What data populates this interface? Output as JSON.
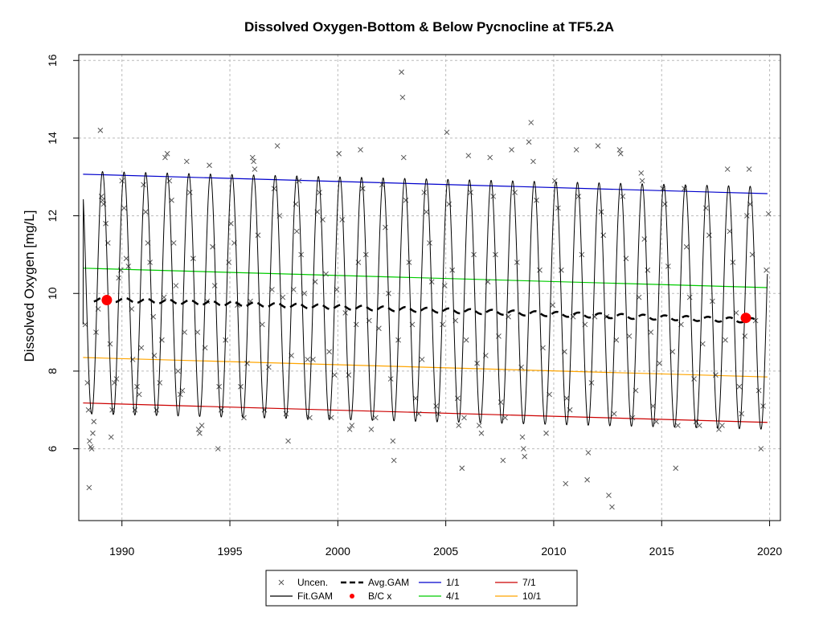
{
  "chart_data": {
    "type": "line",
    "title": "Dissolved Oxygen-Bottom & Below Pycnocline at TF5.2A",
    "xlabel": "",
    "ylabel": "Dissolved Oxygen [mg/L]",
    "xlim": [
      1988.0,
      2020.5
    ],
    "ylim": [
      4.15,
      16.15
    ],
    "x_ticks": [
      1990,
      1995,
      2000,
      2005,
      2010,
      2015,
      2020
    ],
    "y_ticks": [
      6,
      8,
      10,
      12,
      14,
      16
    ],
    "grid": true,
    "legend_position": "bottom",
    "colors": {
      "uncen": "#555555",
      "fit_gam": "#000000",
      "avg_gam": "#000000",
      "bc": "#ff0000",
      "p1_1": "#0000cc",
      "p4_1": "#00cc00",
      "p7_1": "#cc0000",
      "p10_1": "#ffa500",
      "grid": "#bbbbbb"
    },
    "legend": [
      {
        "key": "uncen",
        "label": "Uncen.",
        "symbol": "x"
      },
      {
        "key": "avg",
        "label": "Avg.GAM",
        "symbol": "dashed"
      },
      {
        "key": "p1",
        "label": "1/1",
        "symbol": "line"
      },
      {
        "key": "p7",
        "label": "7/1",
        "symbol": "line"
      },
      {
        "key": "fit",
        "label": "Fit.GAM",
        "symbol": "line"
      },
      {
        "key": "bc",
        "label": "B/C x",
        "symbol": "dot"
      },
      {
        "key": "p4",
        "label": "4/1",
        "symbol": "line"
      },
      {
        "key": "p10",
        "label": "10/1",
        "symbol": "line"
      }
    ],
    "series_lines": {
      "p1_1": {
        "x": [
          1988.2,
          2019.9
        ],
        "y": [
          13.07,
          12.57
        ]
      },
      "p4_1": {
        "x": [
          1988.2,
          2019.9
        ],
        "y": [
          10.65,
          10.15
        ]
      },
      "p10_1": {
        "x": [
          1988.2,
          2019.9
        ],
        "y": [
          8.35,
          7.85
        ]
      },
      "p7_1": {
        "x": [
          1988.2,
          2019.9
        ],
        "y": [
          7.18,
          6.68
        ]
      }
    },
    "avg_gam": {
      "x_start": 1988.7,
      "x_end": 2019.4,
      "y_start": 9.85,
      "y_end": 9.3,
      "wiggle": 0.06
    },
    "fit_gam": {
      "x_start": 1988.2,
      "x_end": 2019.9,
      "y_start": 9.2,
      "y_end": 10.5,
      "peak_start": 13.15,
      "peak_end": 12.75,
      "trough_start": 6.9,
      "trough_end": 6.5,
      "peak_phase": 0.1
    },
    "bc_points": [
      {
        "x": 1989.3,
        "y": 9.83
      },
      {
        "x": 2018.9,
        "y": 9.37
      }
    ],
    "uncensored_points": [
      [
        1988.3,
        9.2
      ],
      [
        1988.4,
        7.7
      ],
      [
        1988.45,
        7.0
      ],
      [
        1988.5,
        6.2
      ],
      [
        1988.55,
        6.05
      ],
      [
        1988.6,
        6.0
      ],
      [
        1988.48,
        5.0
      ],
      [
        1988.65,
        6.4
      ],
      [
        1988.7,
        6.7
      ],
      [
        1988.8,
        9.0
      ],
      [
        1988.9,
        9.6
      ],
      [
        1989.0,
        14.2
      ],
      [
        1989.05,
        12.5
      ],
      [
        1989.1,
        12.4
      ],
      [
        1989.15,
        12.3
      ],
      [
        1989.25,
        11.8
      ],
      [
        1989.35,
        11.3
      ],
      [
        1989.45,
        8.7
      ],
      [
        1989.5,
        6.3
      ],
      [
        1989.55,
        7.0
      ],
      [
        1989.65,
        7.7
      ],
      [
        1989.75,
        7.8
      ],
      [
        1989.85,
        10.4
      ],
      [
        1989.95,
        10.6
      ],
      [
        1990.0,
        12.9
      ],
      [
        1990.1,
        12.2
      ],
      [
        1990.2,
        10.9
      ],
      [
        1990.3,
        10.7
      ],
      [
        1990.45,
        9.6
      ],
      [
        1990.5,
        8.3
      ],
      [
        1990.6,
        7.0
      ],
      [
        1990.7,
        7.6
      ],
      [
        1990.8,
        7.4
      ],
      [
        1990.9,
        8.6
      ],
      [
        1991.0,
        12.8
      ],
      [
        1991.1,
        12.1
      ],
      [
        1991.2,
        11.3
      ],
      [
        1991.3,
        10.8
      ],
      [
        1991.45,
        9.4
      ],
      [
        1991.5,
        8.4
      ],
      [
        1991.6,
        7.0
      ],
      [
        1991.75,
        7.7
      ],
      [
        1991.85,
        8.8
      ],
      [
        1991.95,
        9.9
      ],
      [
        1992.0,
        13.5
      ],
      [
        1992.1,
        13.6
      ],
      [
        1992.2,
        12.9
      ],
      [
        1992.3,
        12.4
      ],
      [
        1992.4,
        11.3
      ],
      [
        1992.5,
        10.2
      ],
      [
        1992.6,
        8.0
      ],
      [
        1992.7,
        7.4
      ],
      [
        1992.8,
        7.5
      ],
      [
        1992.9,
        9.0
      ],
      [
        1993.0,
        13.4
      ],
      [
        1993.15,
        12.6
      ],
      [
        1993.3,
        10.9
      ],
      [
        1993.5,
        9.0
      ],
      [
        1993.55,
        6.5
      ],
      [
        1993.6,
        6.4
      ],
      [
        1993.7,
        6.6
      ],
      [
        1993.85,
        8.6
      ],
      [
        1993.95,
        9.8
      ],
      [
        1994.05,
        13.3
      ],
      [
        1994.2,
        11.2
      ],
      [
        1994.3,
        10.2
      ],
      [
        1994.45,
        6.0
      ],
      [
        1994.5,
        7.6
      ],
      [
        1994.6,
        7.0
      ],
      [
        1994.8,
        8.8
      ],
      [
        1994.95,
        10.8
      ],
      [
        1995.05,
        11.8
      ],
      [
        1995.2,
        11.3
      ],
      [
        1995.35,
        9.7
      ],
      [
        1995.5,
        7.6
      ],
      [
        1995.65,
        6.8
      ],
      [
        1995.8,
        8.2
      ],
      [
        1995.95,
        9.8
      ],
      [
        1996.05,
        13.5
      ],
      [
        1996.1,
        13.4
      ],
      [
        1996.15,
        13.2
      ],
      [
        1996.3,
        11.5
      ],
      [
        1996.5,
        9.2
      ],
      [
        1996.6,
        7.0
      ],
      [
        1996.8,
        8.1
      ],
      [
        1996.95,
        10.1
      ],
      [
        1997.05,
        12.7
      ],
      [
        1997.2,
        13.8
      ],
      [
        1997.3,
        12.0
      ],
      [
        1997.45,
        9.9
      ],
      [
        1997.6,
        6.9
      ],
      [
        1997.7,
        6.2
      ],
      [
        1997.85,
        8.4
      ],
      [
        1997.95,
        10.1
      ],
      [
        1998.05,
        12.3
      ],
      [
        1998.1,
        11.6
      ],
      [
        1998.2,
        12.9
      ],
      [
        1998.3,
        11.0
      ],
      [
        1998.45,
        10.0
      ],
      [
        1998.6,
        8.3
      ],
      [
        1998.7,
        6.8
      ],
      [
        1998.85,
        8.3
      ],
      [
        1998.95,
        10.3
      ],
      [
        1999.05,
        12.1
      ],
      [
        1999.15,
        12.6
      ],
      [
        1999.3,
        11.9
      ],
      [
        1999.45,
        10.5
      ],
      [
        1999.6,
        8.5
      ],
      [
        1999.7,
        6.8
      ],
      [
        1999.85,
        7.9
      ],
      [
        1999.95,
        10.1
      ],
      [
        2000.05,
        13.6
      ],
      [
        2000.2,
        11.9
      ],
      [
        2000.35,
        9.5
      ],
      [
        2000.5,
        7.9
      ],
      [
        2000.55,
        6.5
      ],
      [
        2000.65,
        6.6
      ],
      [
        2000.85,
        9.2
      ],
      [
        2000.95,
        10.8
      ],
      [
        2001.05,
        13.7
      ],
      [
        2001.15,
        12.7
      ],
      [
        2001.3,
        11.0
      ],
      [
        2001.45,
        9.3
      ],
      [
        2001.55,
        6.5
      ],
      [
        2001.75,
        6.8
      ],
      [
        2001.9,
        9.1
      ],
      [
        2002.05,
        12.8
      ],
      [
        2002.2,
        11.7
      ],
      [
        2002.35,
        10.0
      ],
      [
        2002.45,
        7.8
      ],
      [
        2002.55,
        6.2
      ],
      [
        2002.6,
        5.7
      ],
      [
        2002.8,
        8.8
      ],
      [
        2002.95,
        15.7
      ],
      [
        2003.0,
        15.05
      ],
      [
        2003.05,
        13.5
      ],
      [
        2003.15,
        12.4
      ],
      [
        2003.3,
        10.8
      ],
      [
        2003.45,
        9.2
      ],
      [
        2003.6,
        7.3
      ],
      [
        2003.75,
        6.9
      ],
      [
        2003.9,
        8.3
      ],
      [
        2004.0,
        12.6
      ],
      [
        2004.1,
        12.1
      ],
      [
        2004.25,
        11.3
      ],
      [
        2004.35,
        10.3
      ],
      [
        2004.55,
        7.1
      ],
      [
        2004.65,
        6.9
      ],
      [
        2004.85,
        9.2
      ],
      [
        2004.95,
        10.2
      ],
      [
        2005.05,
        14.15
      ],
      [
        2005.15,
        12.3
      ],
      [
        2005.3,
        10.6
      ],
      [
        2005.45,
        9.3
      ],
      [
        2005.55,
        7.3
      ],
      [
        2005.6,
        6.6
      ],
      [
        2005.75,
        5.5
      ],
      [
        2005.85,
        6.8
      ],
      [
        2005.95,
        8.8
      ],
      [
        2006.05,
        13.55
      ],
      [
        2006.15,
        12.6
      ],
      [
        2006.3,
        11.0
      ],
      [
        2006.45,
        8.2
      ],
      [
        2006.55,
        6.6
      ],
      [
        2006.65,
        6.4
      ],
      [
        2006.85,
        8.4
      ],
      [
        2006.95,
        10.3
      ],
      [
        2007.05,
        13.5
      ],
      [
        2007.2,
        12.5
      ],
      [
        2007.3,
        11.0
      ],
      [
        2007.45,
        8.9
      ],
      [
        2007.55,
        7.2
      ],
      [
        2007.65,
        5.7
      ],
      [
        2007.75,
        6.8
      ],
      [
        2007.9,
        9.4
      ],
      [
        2008.05,
        13.7
      ],
      [
        2008.2,
        12.6
      ],
      [
        2008.3,
        10.8
      ],
      [
        2008.5,
        8.1
      ],
      [
        2008.55,
        6.3
      ],
      [
        2008.6,
        6.0
      ],
      [
        2008.65,
        5.8
      ],
      [
        2008.85,
        13.9
      ],
      [
        2008.95,
        14.4
      ],
      [
        2009.05,
        13.4
      ],
      [
        2009.2,
        12.4
      ],
      [
        2009.35,
        10.6
      ],
      [
        2009.5,
        8.6
      ],
      [
        2009.65,
        6.4
      ],
      [
        2009.8,
        7.4
      ],
      [
        2009.95,
        9.7
      ],
      [
        2010.05,
        12.9
      ],
      [
        2010.2,
        12.2
      ],
      [
        2010.35,
        10.6
      ],
      [
        2010.5,
        8.5
      ],
      [
        2010.55,
        5.1
      ],
      [
        2010.6,
        7.3
      ],
      [
        2010.75,
        7.0
      ],
      [
        2010.9,
        9.4
      ],
      [
        2011.05,
        13.7
      ],
      [
        2011.15,
        12.5
      ],
      [
        2011.3,
        11.0
      ],
      [
        2011.45,
        9.2
      ],
      [
        2011.55,
        5.2
      ],
      [
        2011.6,
        5.9
      ],
      [
        2011.75,
        7.7
      ],
      [
        2011.9,
        9.4
      ],
      [
        2012.05,
        13.8
      ],
      [
        2012.2,
        12.1
      ],
      [
        2012.3,
        11.5
      ],
      [
        2012.45,
        9.4
      ],
      [
        2012.55,
        4.8
      ],
      [
        2012.7,
        4.5
      ],
      [
        2012.8,
        6.9
      ],
      [
        2012.9,
        8.8
      ],
      [
        2013.05,
        13.7
      ],
      [
        2013.1,
        13.6
      ],
      [
        2013.2,
        12.5
      ],
      [
        2013.35,
        10.9
      ],
      [
        2013.5,
        8.9
      ],
      [
        2013.65,
        6.8
      ],
      [
        2013.8,
        7.5
      ],
      [
        2013.95,
        9.9
      ],
      [
        2014.05,
        13.1
      ],
      [
        2014.1,
        12.9
      ],
      [
        2014.2,
        11.4
      ],
      [
        2014.35,
        10.6
      ],
      [
        2014.5,
        9.0
      ],
      [
        2014.6,
        7.1
      ],
      [
        2014.75,
        6.7
      ],
      [
        2014.9,
        8.2
      ],
      [
        2015.05,
        12.7
      ],
      [
        2015.15,
        12.3
      ],
      [
        2015.3,
        10.7
      ],
      [
        2015.5,
        8.5
      ],
      [
        2015.65,
        5.5
      ],
      [
        2015.75,
        6.6
      ],
      [
        2015.9,
        9.2
      ],
      [
        2016.05,
        12.7
      ],
      [
        2016.15,
        11.2
      ],
      [
        2016.3,
        9.9
      ],
      [
        2016.5,
        7.8
      ],
      [
        2016.6,
        6.7
      ],
      [
        2016.75,
        6.6
      ],
      [
        2016.9,
        8.7
      ],
      [
        2017.05,
        12.2
      ],
      [
        2017.2,
        11.5
      ],
      [
        2017.35,
        9.8
      ],
      [
        2017.5,
        7.9
      ],
      [
        2017.65,
        6.5
      ],
      [
        2017.8,
        6.6
      ],
      [
        2017.95,
        8.8
      ],
      [
        2018.05,
        13.2
      ],
      [
        2018.15,
        11.6
      ],
      [
        2018.3,
        10.8
      ],
      [
        2018.45,
        9.5
      ],
      [
        2018.6,
        7.6
      ],
      [
        2018.7,
        6.9
      ],
      [
        2018.85,
        8.9
      ],
      [
        2018.95,
        12.0
      ],
      [
        2019.05,
        13.2
      ],
      [
        2019.1,
        12.3
      ],
      [
        2019.2,
        11.0
      ],
      [
        2019.35,
        9.3
      ],
      [
        2019.5,
        7.5
      ],
      [
        2019.6,
        6.0
      ],
      [
        2019.7,
        7.1
      ],
      [
        2019.85,
        10.6
      ],
      [
        2019.95,
        12.05
      ]
    ]
  }
}
